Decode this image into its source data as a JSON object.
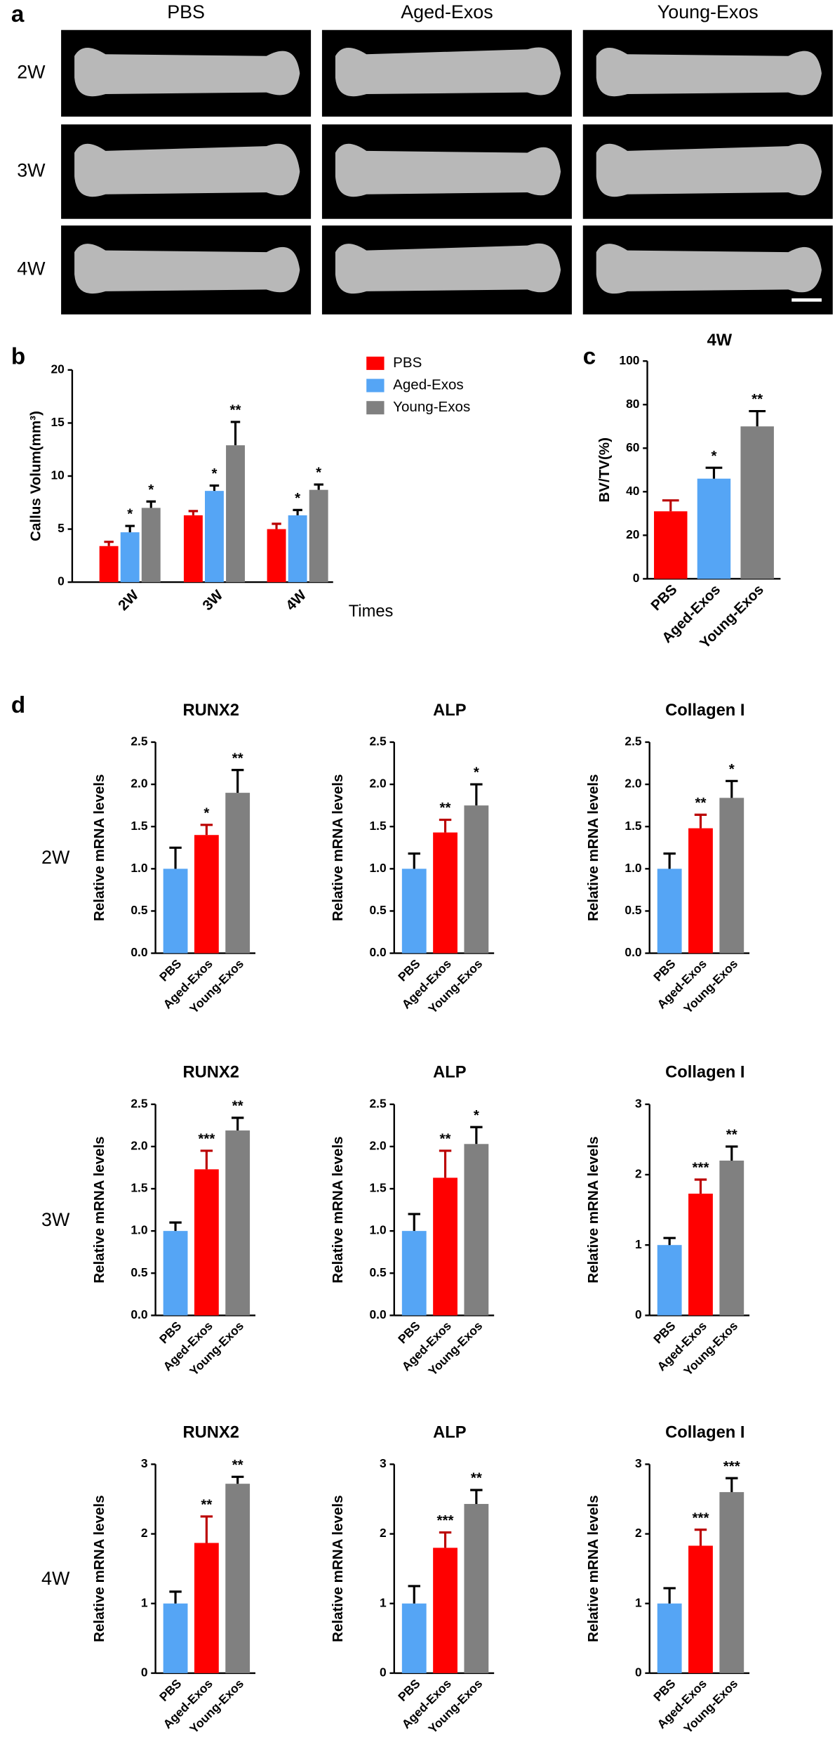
{
  "panels": {
    "a": {
      "label": "a",
      "columns": [
        "PBS",
        "Aged-Exos",
        "Young-Exos"
      ],
      "rows": [
        "2W",
        "3W",
        "4W"
      ]
    },
    "d": {
      "label": "d",
      "rows": [
        "2W",
        "3W",
        "4W"
      ]
    }
  },
  "chart_data": [
    {
      "type": "bar",
      "label": "b",
      "ylabel": "Callus Volum(mm³)",
      "xlabel": "Times",
      "categories": [
        "2W",
        "3W",
        "4W"
      ],
      "series": [
        {
          "name": "PBS",
          "color": "#ff0000",
          "values": [
            3.4,
            6.3,
            5.0
          ],
          "errors": [
            0.4,
            0.4,
            0.5
          ]
        },
        {
          "name": "Aged-Exos",
          "color": "#55a5f5",
          "values": [
            4.7,
            8.6,
            6.3
          ],
          "errors": [
            0.6,
            0.5,
            0.5
          ],
          "annotations": [
            "*",
            "*",
            "*"
          ]
        },
        {
          "name": "Young-Exos",
          "color": "#808080",
          "values": [
            7.0,
            12.9,
            8.7
          ],
          "errors": [
            0.6,
            2.2,
            0.5
          ],
          "annotations": [
            "*",
            "**",
            "*"
          ]
        }
      ],
      "ylim": [
        0,
        20
      ],
      "yticks": [
        0,
        5,
        10,
        15,
        20
      ]
    },
    {
      "type": "bar",
      "label": "c",
      "title": "4W",
      "ylabel": "BV/TV(%)",
      "categories": [
        "PBS",
        "Aged-Exos",
        "Young-Exos"
      ],
      "colors": [
        "#ff0000",
        "#55a5f5",
        "#808080"
      ],
      "values": [
        31,
        46,
        70
      ],
      "errors": [
        5,
        5,
        7
      ],
      "annotations": [
        null,
        "*",
        "**"
      ],
      "ylim": [
        0,
        100
      ],
      "yticks": [
        0,
        20,
        40,
        60,
        80,
        100
      ]
    },
    {
      "type": "bar",
      "title": "RUNX2",
      "ylabel": "Relative mRNA levels",
      "categories": [
        "PBS",
        "Aged-Exos",
        "Young-Exos"
      ],
      "colors": [
        "#55a5f5",
        "#ff0000",
        "#808080"
      ],
      "values": [
        1.0,
        1.4,
        1.9
      ],
      "errors": [
        0.25,
        0.12,
        0.27
      ],
      "annotations": [
        null,
        "*",
        "**"
      ],
      "ylim": [
        0,
        2.5
      ],
      "yticks": [
        {
          "value": 0,
          "label": "0.0"
        },
        0.5,
        {
          "value": 1,
          "label": "1.0"
        },
        1.5,
        {
          "value": 2,
          "label": "2.0"
        },
        2.5
      ]
    },
    {
      "type": "bar",
      "title": "ALP",
      "ylabel": "Relative mRNA levels",
      "categories": [
        "PBS",
        "Aged-Exos",
        "Young-Exos"
      ],
      "colors": [
        "#55a5f5",
        "#ff0000",
        "#808080"
      ],
      "values": [
        1.0,
        1.43,
        1.75
      ],
      "errors": [
        0.18,
        0.15,
        0.25
      ],
      "annotations": [
        null,
        "**",
        "*"
      ],
      "ylim": [
        0,
        2.5
      ],
      "yticks": [
        {
          "value": 0,
          "label": "0.0"
        },
        0.5,
        {
          "value": 1,
          "label": "1.0"
        },
        1.5,
        {
          "value": 2,
          "label": "2.0"
        },
        2.5
      ]
    },
    {
      "type": "bar",
      "title": "Collagen I",
      "ylabel": "Relative mRNA levels",
      "categories": [
        "PBS",
        "Aged-Exos",
        "Young-Exos"
      ],
      "colors": [
        "#55a5f5",
        "#ff0000",
        "#808080"
      ],
      "values": [
        1.0,
        1.48,
        1.84
      ],
      "errors": [
        0.18,
        0.16,
        0.2
      ],
      "annotations": [
        null,
        "**",
        "*"
      ],
      "ylim": [
        0,
        2.5
      ],
      "yticks": [
        {
          "value": 0,
          "label": "0.0"
        },
        0.5,
        {
          "value": 1,
          "label": "1.0"
        },
        1.5,
        {
          "value": 2,
          "label": "2.0"
        },
        2.5
      ]
    },
    {
      "type": "bar",
      "title": "RUNX2",
      "ylabel": "Relative mRNA levels",
      "categories": [
        "PBS",
        "Aged-Exos",
        "Young-Exos"
      ],
      "colors": [
        "#55a5f5",
        "#ff0000",
        "#808080"
      ],
      "values": [
        1.0,
        1.73,
        2.19
      ],
      "errors": [
        0.1,
        0.22,
        0.15
      ],
      "annotations": [
        null,
        "***",
        "**"
      ],
      "ylim": [
        0,
        2.5
      ],
      "yticks": [
        {
          "value": 0,
          "label": "0.0"
        },
        0.5,
        {
          "value": 1,
          "label": "1.0"
        },
        1.5,
        {
          "value": 2,
          "label": "2.0"
        },
        2.5
      ]
    },
    {
      "type": "bar",
      "title": "ALP",
      "ylabel": "Relative mRNA levels",
      "categories": [
        "PBS",
        "Aged-Exos",
        "Young-Exos"
      ],
      "colors": [
        "#55a5f5",
        "#ff0000",
        "#808080"
      ],
      "values": [
        1.0,
        1.63,
        2.03
      ],
      "errors": [
        0.2,
        0.32,
        0.2
      ],
      "annotations": [
        null,
        "**",
        "*"
      ],
      "ylim": [
        0,
        2.5
      ],
      "yticks": [
        {
          "value": 0,
          "label": "0.0"
        },
        0.5,
        {
          "value": 1,
          "label": "1.0"
        },
        1.5,
        {
          "value": 2,
          "label": "2.0"
        },
        2.5
      ]
    },
    {
      "type": "bar",
      "title": "Collagen I",
      "ylabel": "Relative mRNA levels",
      "categories": [
        "PBS",
        "Aged-Exos",
        "Young-Exos"
      ],
      "colors": [
        "#55a5f5",
        "#ff0000",
        "#808080"
      ],
      "values": [
        1.0,
        1.73,
        2.2
      ],
      "errors": [
        0.1,
        0.2,
        0.2
      ],
      "annotations": [
        null,
        "***",
        "**"
      ],
      "ylim": [
        0,
        3
      ],
      "yticks": [
        0,
        1,
        2,
        3
      ]
    },
    {
      "type": "bar",
      "title": "RUNX2",
      "ylabel": "Relative mRNA levels",
      "categories": [
        "PBS",
        "Aged-Exos",
        "Young-Exos"
      ],
      "colors": [
        "#55a5f5",
        "#ff0000",
        "#808080"
      ],
      "values": [
        1.0,
        1.87,
        2.72
      ],
      "errors": [
        0.17,
        0.38,
        0.1
      ],
      "annotations": [
        null,
        "**",
        "**"
      ],
      "ylim": [
        0,
        3
      ],
      "yticks": [
        0,
        1,
        2,
        3
      ]
    },
    {
      "type": "bar",
      "title": "ALP",
      "ylabel": "Relative mRNA levels",
      "categories": [
        "PBS",
        "Aged-Exos",
        "Young-Exos"
      ],
      "colors": [
        "#55a5f5",
        "#ff0000",
        "#808080"
      ],
      "values": [
        1.0,
        1.8,
        2.43
      ],
      "errors": [
        0.25,
        0.22,
        0.2
      ],
      "annotations": [
        null,
        "***",
        "**"
      ],
      "ylim": [
        0,
        3
      ],
      "yticks": [
        0,
        1,
        2,
        3
      ]
    },
    {
      "type": "bar",
      "title": "Collagen I",
      "ylabel": "Relative mRNA levels",
      "categories": [
        "PBS",
        "Aged-Exos",
        "Young-Exos"
      ],
      "colors": [
        "#55a5f5",
        "#ff0000",
        "#808080"
      ],
      "values": [
        1.0,
        1.83,
        2.6
      ],
      "errors": [
        0.22,
        0.23,
        0.2
      ],
      "annotations": [
        null,
        "***",
        "***"
      ],
      "ylim": [
        0,
        3
      ],
      "yticks": [
        0,
        1,
        2,
        3
      ]
    }
  ]
}
